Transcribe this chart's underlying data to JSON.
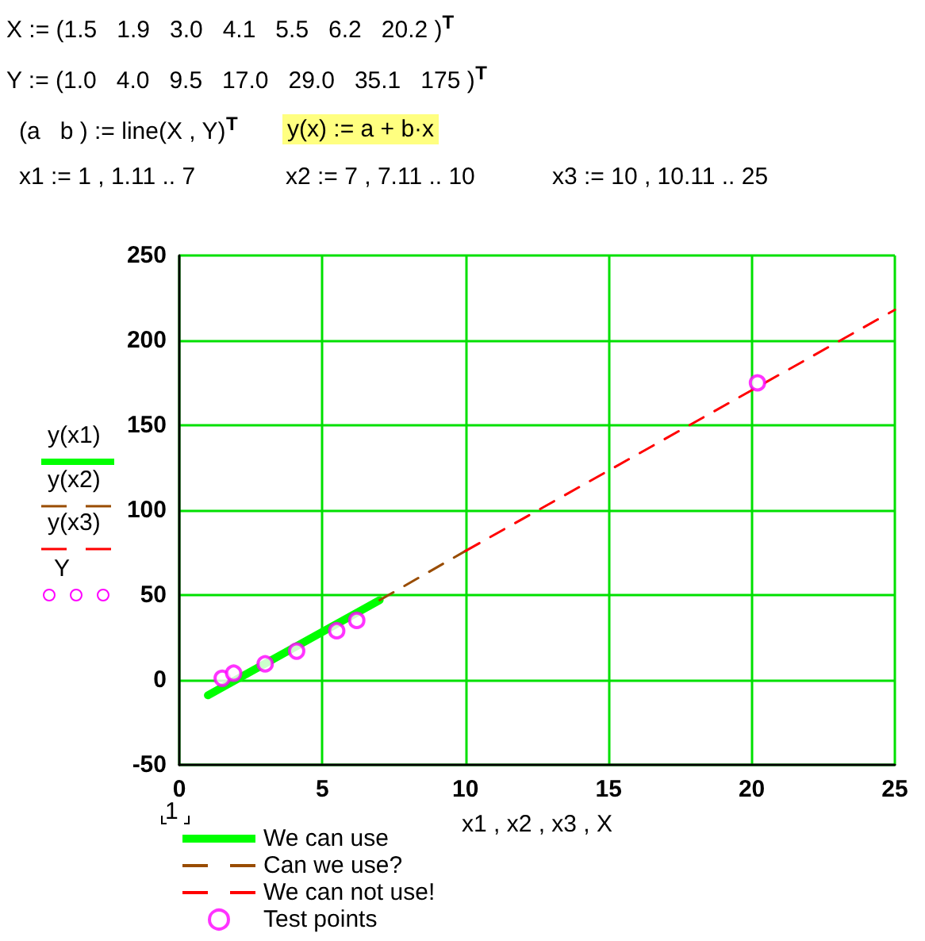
{
  "chart_data": {
    "type": "line",
    "xlabel": "x1 , x2 , x3 , X",
    "annotations": [
      "X := (1.5   1.9   3.0   4.1   5.5   6.2   20.2 )$^{T}$",
      "Y := (1.0   4.0   9.5   17.0   29.0   35.1   175 )$^{T}$",
      "(a   b ) := line(X , Y)$^{T}$",
      "y(x) := a + b·x",
      "x1 := 1 , 1.11 .. 7",
      "x2 := 7 , 7.11 .. 10",
      "x3 := 10 , 10.11 .. 25",
      "y(x1)",
      "y(x2)",
      "y(x3)",
      "Y",
      "1"
    ],
    "series": [
      {
        "name": "We can use",
        "color": "#00ff00",
        "line_style": "solid",
        "marker": "none",
        "x": [
          1,
          7
        ],
        "values": [
          -9,
          47
        ]
      },
      {
        "name": "Can we use?",
        "color": "#994c00",
        "line_style": "dashed",
        "marker": "none",
        "x": [
          7,
          10
        ],
        "values": [
          47,
          76
        ]
      },
      {
        "name": "We can not use!",
        "color": "#ff0000",
        "line_style": "dashed",
        "marker": "none",
        "x": [
          10,
          25
        ],
        "values": [
          76,
          218
        ]
      },
      {
        "name": "Test points",
        "type": "scatter",
        "color": "#ff00ff",
        "marker": "circle",
        "x": [
          1.5,
          1.9,
          3.0,
          4.1,
          5.5,
          6.2,
          20.2
        ],
        "values": [
          1.0,
          4.0,
          9.5,
          17.0,
          29.0,
          35.1,
          175
        ]
      }
    ],
    "xlim": [
      0,
      25
    ],
    "xticks": [
      0,
      5,
      10,
      15,
      20,
      25
    ],
    "ylim": [
      -50,
      250
    ],
    "yticks": [
      -50,
      0,
      50,
      100,
      150,
      200,
      250
    ],
    "grid": true,
    "legend": "bottom"
  }
}
